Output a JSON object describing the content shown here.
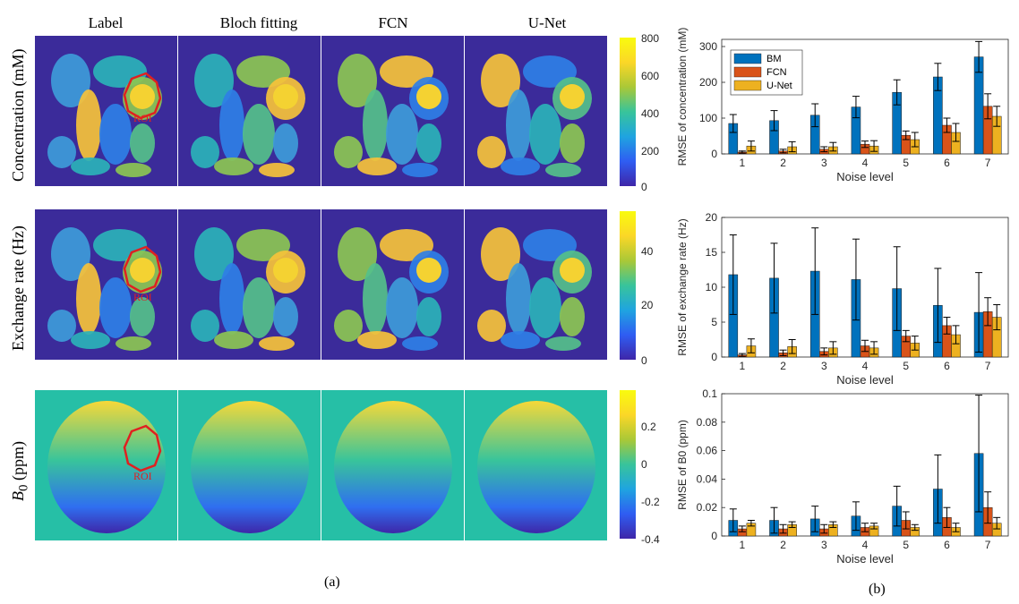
{
  "left_panel": {
    "columns": [
      "Label",
      "Bloch fitting",
      "FCN",
      "U-Net"
    ],
    "rows": [
      {
        "label": "Concentration (mM)",
        "colorbar": [
          "800",
          "600",
          "400",
          "200",
          "0"
        ]
      },
      {
        "label": "Exchange rate (Hz)",
        "colorbar": [
          "40",
          "20",
          "0"
        ]
      },
      {
        "label": "B0 (ppm)",
        "colorbar": [
          "0.2",
          "0",
          "-0.2",
          "-0.4"
        ]
      }
    ],
    "roi_label": "ROI",
    "caption": "(a)"
  },
  "right_caption": "(b)",
  "chart_data": [
    {
      "type": "bar",
      "categories": [
        "1",
        "2",
        "3",
        "4",
        "5",
        "6",
        "7"
      ],
      "xlabel": "Noise level",
      "ylabel": "RMSE of concentration (mM)",
      "ylim": [
        0,
        320
      ],
      "yticks": [
        0,
        100,
        200,
        300
      ],
      "legend": "top-left",
      "series": [
        {
          "name": "BM",
          "color": "#0072bd",
          "values": [
            85,
            93,
            108,
            131,
            172,
            215,
            271
          ],
          "errors": [
            25,
            28,
            32,
            30,
            35,
            38,
            43
          ]
        },
        {
          "name": "FCN",
          "color": "#d95319",
          "values": [
            5,
            8,
            13,
            27,
            52,
            80,
            133
          ],
          "errors": [
            3,
            5,
            7,
            9,
            12,
            20,
            35
          ]
        },
        {
          "name": "U-Net",
          "color": "#edb120",
          "values": [
            22,
            20,
            20,
            22,
            40,
            60,
            105
          ],
          "errors": [
            14,
            14,
            12,
            15,
            20,
            25,
            28
          ]
        }
      ]
    },
    {
      "type": "bar",
      "categories": [
        "1",
        "2",
        "3",
        "4",
        "5",
        "6",
        "7"
      ],
      "xlabel": "Noise level",
      "ylabel": "RMSE of exchange rate (Hz)",
      "ylim": [
        0,
        20
      ],
      "yticks": [
        0,
        5,
        10,
        15,
        20
      ],
      "series": [
        {
          "name": "BM",
          "color": "#0072bd",
          "values": [
            11.8,
            11.3,
            12.3,
            11.1,
            9.8,
            7.4,
            6.4
          ],
          "errors": [
            5.7,
            5.0,
            6.2,
            5.8,
            6.0,
            5.3,
            5.7
          ]
        },
        {
          "name": "FCN",
          "color": "#d95319",
          "values": [
            0.3,
            0.6,
            0.8,
            1.6,
            3.0,
            4.5,
            6.5
          ],
          "errors": [
            0.2,
            0.4,
            0.5,
            0.8,
            0.8,
            1.2,
            2.0
          ]
        },
        {
          "name": "U-Net",
          "color": "#edb120",
          "values": [
            1.6,
            1.5,
            1.3,
            1.3,
            2.0,
            3.2,
            5.7
          ],
          "errors": [
            1.0,
            1.0,
            0.9,
            0.9,
            1.0,
            1.3,
            1.8
          ]
        }
      ]
    },
    {
      "type": "bar",
      "categories": [
        "1",
        "2",
        "3",
        "4",
        "5",
        "6",
        "7"
      ],
      "xlabel": "Noise level",
      "ylabel": "RMSE of B0 (ppm)",
      "ylim": [
        0,
        0.1
      ],
      "yticks": [
        0,
        0.02,
        0.04,
        0.06,
        0.08,
        0.1
      ],
      "series": [
        {
          "name": "BM",
          "color": "#0072bd",
          "values": [
            0.011,
            0.011,
            0.012,
            0.014,
            0.021,
            0.033,
            0.058
          ],
          "errors": [
            0.008,
            0.009,
            0.009,
            0.01,
            0.014,
            0.024,
            0.041
          ]
        },
        {
          "name": "FCN",
          "color": "#d95319",
          "values": [
            0.005,
            0.005,
            0.005,
            0.006,
            0.011,
            0.013,
            0.02
          ],
          "errors": [
            0.002,
            0.003,
            0.003,
            0.003,
            0.006,
            0.007,
            0.011
          ]
        },
        {
          "name": "U-Net",
          "color": "#edb120",
          "values": [
            0.009,
            0.008,
            0.008,
            0.007,
            0.006,
            0.006,
            0.009
          ],
          "errors": [
            0.002,
            0.002,
            0.002,
            0.002,
            0.002,
            0.003,
            0.004
          ]
        }
      ]
    }
  ]
}
